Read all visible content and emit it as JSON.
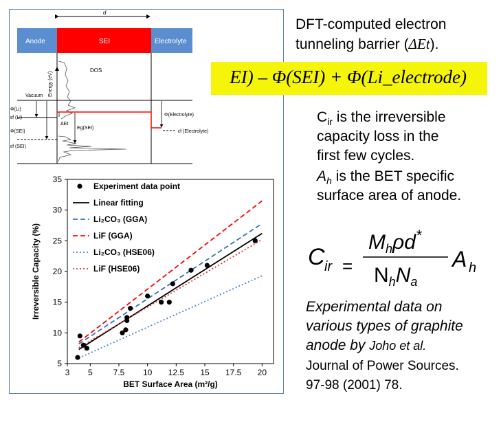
{
  "band": {
    "d_label": "d",
    "anode": "Anode",
    "sei": "SEI",
    "electrolyte": "Electrolyte",
    "colors": {
      "anode": "#5a8ed0",
      "sei": "#ff0000",
      "electrolyte": "#5a8ed0"
    }
  },
  "diagram": {
    "dos": "DOS",
    "energy_axis": "Energy (eV)",
    "vacuum": "Vacuum",
    "phi_li": "Φ(Li)",
    "ef_li": "εf (Li)",
    "phi_sei": "Φ(SEI)",
    "ef_sei": "εf (SEI)",
    "delta_et": "ΔEt",
    "eg_sei": "Eg(SEI)",
    "phi_electrolyte": "Φ(Electrolyte)",
    "ef_electrolyte": "εf (Electrolyte)"
  },
  "chart_data": {
    "type": "scatter",
    "xlabel": "BET Surface Area (m²/g)",
    "ylabel": "Irreversible Capacity (%)",
    "xlim": [
      3,
      21
    ],
    "ylim": [
      5,
      35
    ],
    "xticks": [
      "3",
      "5",
      "7.5",
      "10",
      "12.5",
      "15",
      "17.5",
      "20"
    ],
    "yticks": [
      "5",
      "10",
      "15",
      "20",
      "25",
      "30",
      "35"
    ],
    "points_name": "Experiment data point",
    "points": [
      [
        3.9,
        6.0
      ],
      [
        4.1,
        9.5
      ],
      [
        4.4,
        8.0
      ],
      [
        4.7,
        7.5
      ],
      [
        7.8,
        10.0
      ],
      [
        8.1,
        10.5
      ],
      [
        8.2,
        12.0
      ],
      [
        8.2,
        12.5
      ],
      [
        8.5,
        14.0
      ],
      [
        10.0,
        16.0
      ],
      [
        11.2,
        15.0
      ],
      [
        11.9,
        15.0
      ],
      [
        12.2,
        18.0
      ],
      [
        13.8,
        20.2
      ],
      [
        15.2,
        21.0
      ],
      [
        19.4,
        25.0
      ]
    ],
    "lines": [
      {
        "name": "Linear fitting",
        "color": "#000000",
        "dash": "solid",
        "x": [
          4,
          20
        ],
        "y": [
          7.3,
          26.2
        ]
      },
      {
        "name": "Li₂CO₃ (GGA)",
        "color": "#2e74b5",
        "dash": "dashed",
        "x": [
          4,
          20
        ],
        "y": [
          8.2,
          27.8
        ]
      },
      {
        "name": "LiF (GGA)",
        "color": "#ff0000",
        "dash": "dashed",
        "x": [
          4,
          20
        ],
        "y": [
          8.5,
          31.5
        ]
      },
      {
        "name": "Li₂CO₃ (HSE06)",
        "color": "#4a86c8",
        "dash": "dotted",
        "x": [
          4,
          20
        ],
        "y": [
          5.9,
          19.3
        ]
      },
      {
        "name": "LiF (HSE06)",
        "color": "#e03030",
        "dash": "dotted",
        "x": [
          4,
          20
        ],
        "y": [
          7.6,
          25.2
        ]
      }
    ],
    "legend_position": "top-left"
  },
  "text": {
    "tunneling_line1": "DFT-computed     electron",
    "tunneling_line2": "tunneling barrier (",
    "tunneling_sym": "ΔEt",
    "tunneling_end": ").",
    "formula": "EI) – Φ(SEI) + Φ(Li_electrode)",
    "cir_line1": "Cir is the irreversible",
    "cir_line2": "capacity loss in the",
    "cir_line3": "first few cycles.",
    "ah_line1": "Ah is the BET specific",
    "ah_line2": "surface area of anode.",
    "exp_line1": "Experimental data on",
    "exp_line2": "various types of graphite",
    "exp_line3a": "anode by ",
    "exp_line3b": "Joho et al.",
    "exp_line4": "Journal of Power Sources.",
    "exp_line5": "97-98 (2001) 78."
  },
  "equation": {
    "lhs": "C",
    "lhs_sub": "ir",
    "equals": "=",
    "num": "Mhρd*",
    "den": "NhNa",
    "rhs": "A",
    "rhs_sub": "h"
  }
}
